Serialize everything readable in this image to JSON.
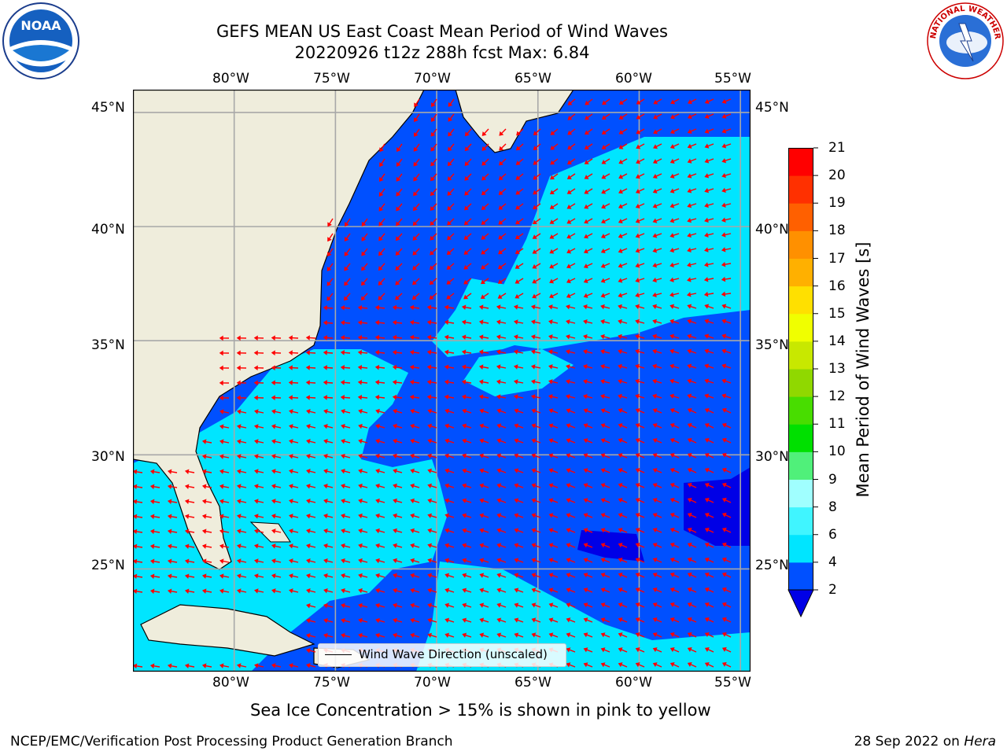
{
  "title": {
    "line1": "GEFS MEAN US East Coast Mean Period of Wind Waves",
    "line2": "20220926 t12z 288h fcst   Max: 6.84"
  },
  "logos": {
    "left": "NOAA",
    "right": "NATIONAL WEATHER SERVICE"
  },
  "map": {
    "lon_labels": [
      "80°W",
      "75°W",
      "70°W",
      "65°W",
      "60°W",
      "55°W"
    ],
    "lat_labels": [
      "45°N",
      "40°N",
      "35°N",
      "30°N",
      "25°N"
    ],
    "lon_range": [
      -85,
      -54.5
    ],
    "lat_range": [
      20.5,
      46
    ],
    "grid": true,
    "legend_text": "Wind Wave Direction (unscaled)"
  },
  "colorbar": {
    "label": "Mean Period of Wind Waves [s]",
    "ticks": [
      "21",
      "20",
      "19",
      "18",
      "17",
      "16",
      "15",
      "14",
      "13",
      "12",
      "11",
      "10",
      "9",
      "8",
      "6",
      "4",
      "2"
    ],
    "colors": [
      "#0000e6",
      "#0050ff",
      "#00e5ff",
      "#40f5ff",
      "#a0ffff",
      "#50f07a",
      "#00e000",
      "#48dd00",
      "#90d800",
      "#c8e800",
      "#f0ff00",
      "#ffe000",
      "#ffb000",
      "#ff9000",
      "#ff6000",
      "#ff3000",
      "#ff0000"
    ],
    "range": [
      2,
      21
    ]
  },
  "chart_data": {
    "type": "heatmap",
    "variable": "Mean Period of Wind Waves [s]",
    "max": 6.84,
    "dominant_levels": [
      2,
      4,
      6
    ]
  },
  "caption": "Sea Ice Concentration > 15% is shown in pink to yellow",
  "footer": {
    "left": "NCEP/EMC/Verification Post Processing Product Generation Branch",
    "right_date": "28 Sep 2022 on ",
    "right_host": "Hera"
  }
}
